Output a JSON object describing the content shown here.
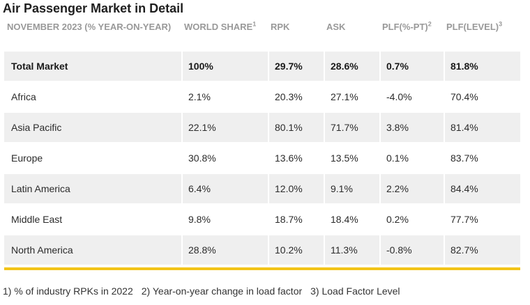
{
  "title": "Air Passenger Market in Detail",
  "columns": [
    {
      "label": "NOVEMBER 2023 (% YEAR-ON-YEAR)",
      "sup": ""
    },
    {
      "label": "WORLD SHARE",
      "sup": "1"
    },
    {
      "label": "RPK",
      "sup": ""
    },
    {
      "label": "ASK",
      "sup": ""
    },
    {
      "label": "PLF(%-PT)",
      "sup": "2"
    },
    {
      "label": "PLF(LEVEL)",
      "sup": "3"
    }
  ],
  "rows": [
    [
      "Total Market",
      "100%",
      "29.7%",
      "28.6%",
      "0.7%",
      "81.8%"
    ],
    [
      "Africa",
      "2.1%",
      "20.3%",
      "27.1%",
      "-4.0%",
      "70.4%"
    ],
    [
      "Asia Pacific",
      "22.1%",
      "80.1%",
      "71.7%",
      "3.8%",
      "81.4%"
    ],
    [
      "Europe",
      "30.8%",
      "13.6%",
      "13.5%",
      "0.1%",
      "83.7%"
    ],
    [
      "Latin America",
      "6.4%",
      "12.0%",
      "9.1%",
      "2.2%",
      "84.4%"
    ],
    [
      "Middle East",
      "9.8%",
      "18.7%",
      "18.4%",
      "0.2%",
      "77.7%"
    ],
    [
      "North America",
      "28.8%",
      "10.2%",
      "11.3%",
      "-0.8%",
      "82.7%"
    ]
  ],
  "footnotes": [
    "1) % of industry RPKs in 2022",
    "2) Year-on-year change in load factor",
    "3) Load Factor Level"
  ],
  "colors": {
    "shaded_row": "#efefef",
    "header_text": "#999999",
    "accent_rule": "#f2c418"
  }
}
